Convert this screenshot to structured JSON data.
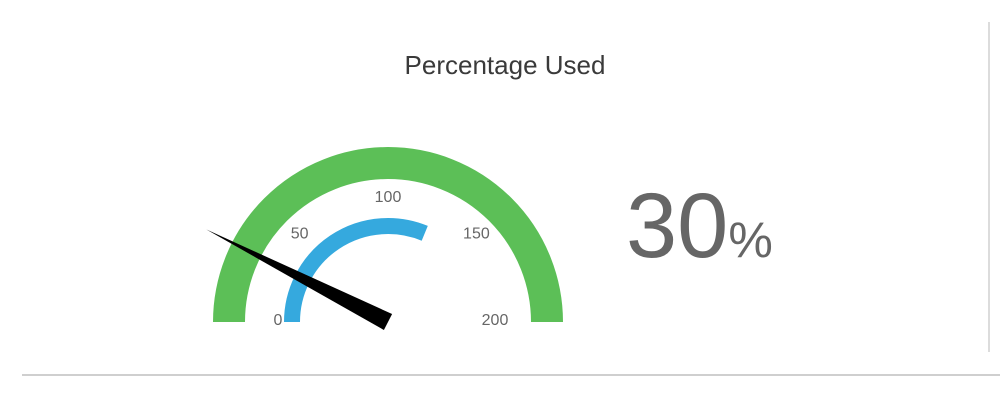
{
  "panel": {
    "title": "Percentage Used"
  },
  "readout": {
    "value": "30",
    "unit": "%"
  },
  "colors": {
    "outer_band": "#5cbf57",
    "inner_band": "#35a9de",
    "needle": "#000000",
    "text": "#666666"
  },
  "chart_data": {
    "type": "gauge",
    "title": "Percentage Used",
    "range": [
      0,
      200
    ],
    "ticks": [
      {
        "value": 0,
        "label": "0"
      },
      {
        "value": 50,
        "label": "50"
      },
      {
        "value": 100,
        "label": "100"
      },
      {
        "value": 150,
        "label": "150"
      },
      {
        "value": 200,
        "label": "200"
      }
    ],
    "bands": [
      {
        "from": 0,
        "to": 200,
        "color": "#5cbf57"
      },
      {
        "from": 0,
        "to": 125,
        "color": "#35a9de"
      }
    ],
    "needle_value": 30
  }
}
